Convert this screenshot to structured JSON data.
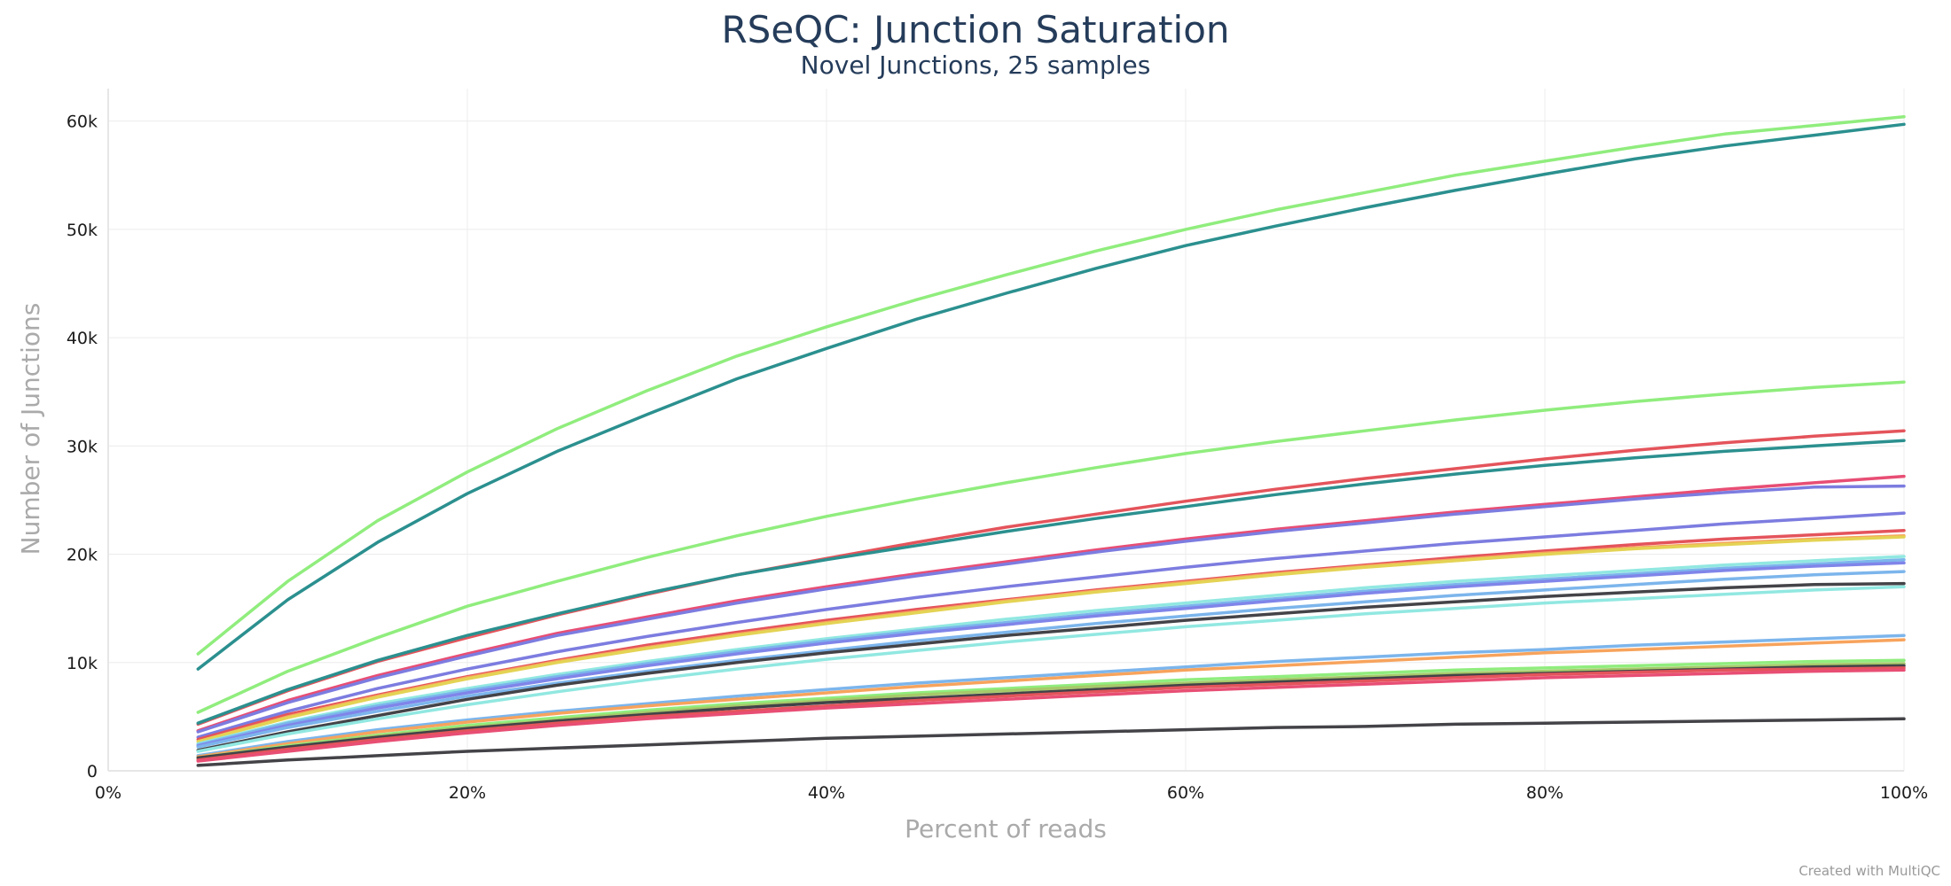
{
  "chart_data": {
    "type": "line",
    "title": "RSeQC: Junction Saturation",
    "subtitle": "Novel Junctions, 25 samples",
    "xlabel": "Percent of reads",
    "ylabel": "Number of Junctions",
    "xlim": [
      0,
      100
    ],
    "ylim": [
      0,
      63000
    ],
    "xticks": [
      0,
      20,
      40,
      60,
      80,
      100
    ],
    "xtick_labels": [
      "0%",
      "20%",
      "40%",
      "60%",
      "80%",
      "100%"
    ],
    "yticks": [
      0,
      10000,
      20000,
      30000,
      40000,
      50000,
      60000
    ],
    "ytick_labels": [
      "0",
      "10k",
      "20k",
      "30k",
      "40k",
      "50k",
      "60k"
    ],
    "grid": true,
    "legend": "none",
    "x": [
      5,
      10,
      15,
      20,
      25,
      30,
      35,
      40,
      45,
      50,
      55,
      60,
      65,
      70,
      75,
      80,
      85,
      90,
      95,
      100
    ],
    "series": [
      {
        "color": "#90ed7d",
        "values": [
          10800,
          17500,
          23100,
          27600,
          31600,
          35100,
          38300,
          41000,
          43500,
          45800,
          48000,
          50000,
          51800,
          53400,
          55000,
          56300,
          57600,
          58800,
          59600,
          60400
        ]
      },
      {
        "color": "#2b908f",
        "values": [
          9400,
          15800,
          21100,
          25600,
          29500,
          32900,
          36200,
          39000,
          41700,
          44100,
          46400,
          48500,
          50300,
          52000,
          53600,
          55100,
          56500,
          57700,
          58700,
          59700
        ]
      },
      {
        "color": "#90ed7d",
        "values": [
          5400,
          9200,
          12300,
          15200,
          17500,
          19700,
          21700,
          23500,
          25100,
          26600,
          28000,
          29300,
          30400,
          31400,
          32400,
          33300,
          34100,
          34800,
          35400,
          35900
        ]
      },
      {
        "color": "#e4545b",
        "values": [
          4300,
          7400,
          10100,
          12300,
          14400,
          16300,
          18100,
          19600,
          21100,
          22500,
          23700,
          24900,
          26000,
          27000,
          27900,
          28800,
          29600,
          30300,
          30900,
          31400
        ]
      },
      {
        "color": "#2b908f",
        "values": [
          4400,
          7500,
          10200,
          12500,
          14500,
          16400,
          18100,
          19500,
          20800,
          22100,
          23300,
          24400,
          25500,
          26500,
          27400,
          28200,
          28900,
          29500,
          30000,
          30500
        ]
      },
      {
        "color": "#e84e74",
        "values": [
          3700,
          6500,
          8800,
          10800,
          12700,
          14200,
          15700,
          17000,
          18200,
          19300,
          20400,
          21400,
          22300,
          23100,
          23900,
          24600,
          25300,
          26000,
          26600,
          27200
        ]
      },
      {
        "color": "#7c7ce0",
        "values": [
          3600,
          6300,
          8600,
          10600,
          12500,
          14000,
          15500,
          16800,
          18000,
          19100,
          20200,
          21200,
          22100,
          22900,
          23700,
          24400,
          25100,
          25700,
          26200,
          26300
        ]
      },
      {
        "color": "#7c7ce0",
        "values": [
          3100,
          5500,
          7600,
          9400,
          11000,
          12400,
          13700,
          14900,
          16000,
          17000,
          17900,
          18800,
          19600,
          20300,
          21000,
          21600,
          22200,
          22800,
          23300,
          23800
        ]
      },
      {
        "color": "#e4545b",
        "values": [
          2900,
          5200,
          7000,
          8700,
          10200,
          11600,
          12800,
          13900,
          14900,
          15800,
          16700,
          17500,
          18300,
          19000,
          19700,
          20300,
          20900,
          21400,
          21800,
          22200
        ]
      },
      {
        "color": "#f7a35c",
        "values": [
          2700,
          5000,
          6900,
          8600,
          10100,
          11400,
          12600,
          13700,
          14700,
          15700,
          16600,
          17400,
          18200,
          18900,
          19500,
          20100,
          20600,
          21000,
          21400,
          21700
        ]
      },
      {
        "color": "#e4d354",
        "values": [
          2700,
          4900,
          6800,
          8500,
          10000,
          11300,
          12500,
          13600,
          14600,
          15600,
          16500,
          17300,
          18100,
          18800,
          19400,
          20000,
          20500,
          20900,
          21300,
          21600
        ]
      },
      {
        "color": "#91e8e1",
        "values": [
          2500,
          4500,
          6200,
          7600,
          8900,
          10100,
          11200,
          12200,
          13100,
          14000,
          14800,
          15500,
          16200,
          16900,
          17500,
          18000,
          18500,
          19000,
          19400,
          19800
        ]
      },
      {
        "color": "#7cb5ec",
        "values": [
          2400,
          4400,
          6000,
          7400,
          8700,
          9900,
          11000,
          12000,
          12900,
          13700,
          14500,
          15200,
          15900,
          16600,
          17200,
          17700,
          18200,
          18700,
          19100,
          19500
        ]
      },
      {
        "color": "#8085e9",
        "values": [
          2300,
          4200,
          5800,
          7200,
          8500,
          9700,
          10800,
          11800,
          12700,
          13500,
          14300,
          15000,
          15700,
          16400,
          17000,
          17500,
          18000,
          18500,
          18900,
          19200
        ]
      },
      {
        "color": "#7cb5ec",
        "values": [
          2200,
          4000,
          5500,
          6900,
          8100,
          9200,
          10200,
          11100,
          12000,
          12800,
          13600,
          14300,
          15000,
          15600,
          16200,
          16700,
          17200,
          17700,
          18100,
          18400
        ]
      },
      {
        "color": "#434348",
        "values": [
          1900,
          3600,
          5100,
          6600,
          7900,
          9000,
          10000,
          10900,
          11700,
          12500,
          13200,
          13900,
          14500,
          15100,
          15600,
          16100,
          16500,
          16900,
          17200,
          17300
        ]
      },
      {
        "color": "#91e8e1",
        "values": [
          1800,
          3400,
          4800,
          6100,
          7300,
          8400,
          9400,
          10300,
          11100,
          11900,
          12600,
          13300,
          13900,
          14500,
          15000,
          15500,
          15900,
          16300,
          16700,
          17000
        ]
      },
      {
        "color": "#7cb5ec",
        "values": [
          1400,
          2700,
          3800,
          4700,
          5500,
          6200,
          6900,
          7500,
          8100,
          8600,
          9100,
          9600,
          10100,
          10500,
          10900,
          11200,
          11600,
          11900,
          12200,
          12500
        ]
      },
      {
        "color": "#f7a35c",
        "values": [
          1300,
          2500,
          3600,
          4500,
          5300,
          6000,
          6600,
          7200,
          7800,
          8300,
          8800,
          9300,
          9700,
          10100,
          10500,
          10900,
          11200,
          11500,
          11800,
          12100
        ]
      },
      {
        "color": "#90ed7d",
        "values": [
          1200,
          2300,
          3300,
          4200,
          4900,
          5600,
          6200,
          6700,
          7200,
          7600,
          8000,
          8400,
          8700,
          9000,
          9300,
          9500,
          9700,
          9900,
          10100,
          10200
        ]
      },
      {
        "color": "#a6c96a",
        "values": [
          1100,
          2200,
          3200,
          4000,
          4700,
          5400,
          6000,
          6500,
          7000,
          7400,
          7800,
          8100,
          8400,
          8700,
          9000,
          9200,
          9400,
          9600,
          9800,
          9900
        ]
      },
      {
        "color": "#434348",
        "values": [
          1200,
          2200,
          3100,
          3900,
          4600,
          5200,
          5800,
          6300,
          6700,
          7100,
          7500,
          7900,
          8200,
          8500,
          8800,
          9000,
          9200,
          9400,
          9600,
          9700
        ]
      },
      {
        "color": "#e4545b",
        "values": [
          1000,
          2000,
          2900,
          3700,
          4400,
          5000,
          5500,
          6000,
          6500,
          6900,
          7300,
          7700,
          8000,
          8300,
          8600,
          8900,
          9100,
          9300,
          9400,
          9500
        ]
      },
      {
        "color": "#e84e74",
        "values": [
          900,
          1800,
          2700,
          3500,
          4200,
          4800,
          5300,
          5800,
          6200,
          6600,
          7000,
          7400,
          7700,
          8000,
          8300,
          8600,
          8800,
          9000,
          9200,
          9300
        ]
      },
      {
        "color": "#434348",
        "values": [
          500,
          1000,
          1400,
          1800,
          2100,
          2400,
          2700,
          3000,
          3200,
          3400,
          3600,
          3800,
          4000,
          4100,
          4300,
          4400,
          4500,
          4600,
          4700,
          4800
        ]
      }
    ]
  },
  "credit": "Created with MultiQC"
}
